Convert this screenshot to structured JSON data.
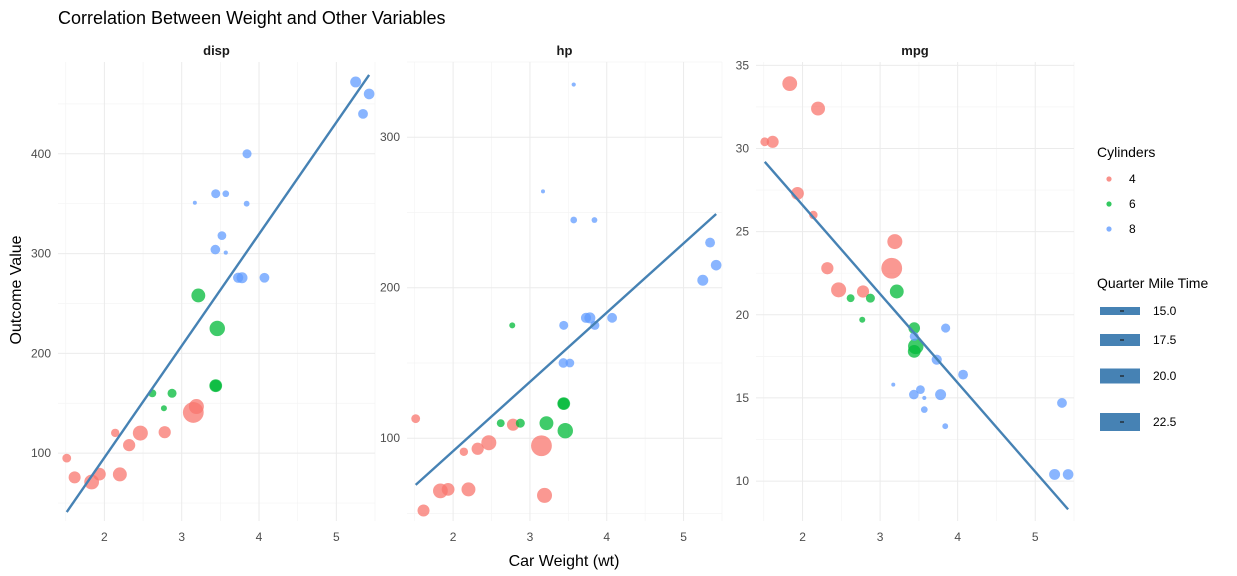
{
  "title": "Correlation Between Weight and Other Variables",
  "xlabel": "Car Weight (wt)",
  "ylabel": "Outcome Value",
  "colors": {
    "4": "#F8766D",
    "6": "#00BA38",
    "8": "#619CFF",
    "trend": "#4682B4"
  },
  "legend": {
    "color_title": "Cylinders",
    "color_items": [
      "4",
      "6",
      "8"
    ],
    "size_title": "Quarter Mile Time",
    "size_items": [
      "15.0",
      "17.5",
      "20.0",
      "22.5"
    ]
  },
  "chart_data": {
    "type": "scatter",
    "facets": [
      {
        "name": "disp",
        "xlim": [
          1.4,
          5.5
        ],
        "ylim": [
          32,
          492
        ],
        "xticks": [
          2,
          3,
          4,
          5
        ],
        "yticks": [
          100,
          200,
          300,
          400,
          500
        ],
        "trend": {
          "x": [
            1.513,
            5.424
          ],
          "y": [
            41,
            479
          ]
        },
        "points": [
          {
            "x": 1.513,
            "y": 95,
            "cyl": "4",
            "qsec": 16.9
          },
          {
            "x": 1.615,
            "y": 75.7,
            "cyl": "4",
            "qsec": 18.52
          },
          {
            "x": 1.835,
            "y": 71.1,
            "cyl": "4",
            "qsec": 19.9
          },
          {
            "x": 1.935,
            "y": 79,
            "cyl": "4",
            "qsec": 18.9
          },
          {
            "x": 2.14,
            "y": 120.3,
            "cyl": "4",
            "qsec": 16.7
          },
          {
            "x": 2.2,
            "y": 78.7,
            "cyl": "4",
            "qsec": 19.47
          },
          {
            "x": 2.32,
            "y": 108,
            "cyl": "4",
            "qsec": 18.61
          },
          {
            "x": 2.465,
            "y": 120.1,
            "cyl": "4",
            "qsec": 20.01
          },
          {
            "x": 2.62,
            "y": 160,
            "cyl": "6",
            "qsec": 16.46
          },
          {
            "x": 2.78,
            "y": 121,
            "cyl": "4",
            "qsec": 18.6
          },
          {
            "x": 2.77,
            "y": 145,
            "cyl": "6",
            "qsec": 15.5
          },
          {
            "x": 2.875,
            "y": 160,
            "cyl": "6",
            "qsec": 17.02
          },
          {
            "x": 3.15,
            "y": 140.8,
            "cyl": "4",
            "qsec": 22.9
          },
          {
            "x": 3.19,
            "y": 146.7,
            "cyl": "4",
            "qsec": 20.0
          },
          {
            "x": 3.215,
            "y": 258,
            "cyl": "6",
            "qsec": 19.44
          },
          {
            "x": 3.17,
            "y": 351,
            "cyl": "8",
            "qsec": 14.5
          },
          {
            "x": 3.435,
            "y": 304,
            "cyl": "8",
            "qsec": 17.3
          },
          {
            "x": 3.44,
            "y": 360,
            "cyl": "8",
            "qsec": 17.02
          },
          {
            "x": 3.44,
            "y": 167.6,
            "cyl": "6",
            "qsec": 18.3
          },
          {
            "x": 3.44,
            "y": 167.6,
            "cyl": "6",
            "qsec": 18.9
          },
          {
            "x": 3.46,
            "y": 225,
            "cyl": "6",
            "qsec": 20.22
          },
          {
            "x": 3.52,
            "y": 318,
            "cyl": "8",
            "qsec": 16.87
          },
          {
            "x": 3.57,
            "y": 360,
            "cyl": "8",
            "qsec": 15.84
          },
          {
            "x": 3.57,
            "y": 301,
            "cyl": "8",
            "qsec": 14.6
          },
          {
            "x": 3.73,
            "y": 275.8,
            "cyl": "8",
            "qsec": 17.6
          },
          {
            "x": 3.78,
            "y": 275.8,
            "cyl": "8",
            "qsec": 18.0
          },
          {
            "x": 3.845,
            "y": 400,
            "cyl": "8",
            "qsec": 17.05
          },
          {
            "x": 3.84,
            "y": 350,
            "cyl": "8",
            "qsec": 15.41
          },
          {
            "x": 4.07,
            "y": 275.8,
            "cyl": "8",
            "qsec": 17.4
          },
          {
            "x": 5.25,
            "y": 472,
            "cyl": "8",
            "qsec": 17.98
          },
          {
            "x": 5.345,
            "y": 440,
            "cyl": "8",
            "qsec": 17.42
          },
          {
            "x": 5.424,
            "y": 460,
            "cyl": "8",
            "qsec": 17.82
          }
        ]
      },
      {
        "name": "hp",
        "xlim": [
          1.4,
          5.5
        ],
        "ylim": [
          45,
          350
        ],
        "xticks": [
          2,
          3,
          4,
          5
        ],
        "yticks": [
          100,
          200,
          300
        ],
        "trend": {
          "x": [
            1.513,
            5.424
          ],
          "y": [
            69,
            249
          ]
        },
        "points": [
          {
            "x": 1.513,
            "y": 113,
            "cyl": "4",
            "qsec": 16.9
          },
          {
            "x": 1.615,
            "y": 52,
            "cyl": "4",
            "qsec": 18.52
          },
          {
            "x": 1.835,
            "y": 65,
            "cyl": "4",
            "qsec": 19.9
          },
          {
            "x": 1.935,
            "y": 66,
            "cyl": "4",
            "qsec": 18.9
          },
          {
            "x": 2.14,
            "y": 91,
            "cyl": "4",
            "qsec": 16.7
          },
          {
            "x": 2.2,
            "y": 66,
            "cyl": "4",
            "qsec": 19.47
          },
          {
            "x": 2.32,
            "y": 93,
            "cyl": "4",
            "qsec": 18.61
          },
          {
            "x": 2.465,
            "y": 97,
            "cyl": "4",
            "qsec": 20.01
          },
          {
            "x": 2.62,
            "y": 110,
            "cyl": "6",
            "qsec": 16.46
          },
          {
            "x": 2.78,
            "y": 109,
            "cyl": "4",
            "qsec": 18.6
          },
          {
            "x": 2.77,
            "y": 175,
            "cyl": "6",
            "qsec": 15.5
          },
          {
            "x": 2.875,
            "y": 110,
            "cyl": "6",
            "qsec": 17.02
          },
          {
            "x": 3.15,
            "y": 95,
            "cyl": "4",
            "qsec": 22.9
          },
          {
            "x": 3.19,
            "y": 62,
            "cyl": "4",
            "qsec": 20.0
          },
          {
            "x": 3.215,
            "y": 110,
            "cyl": "6",
            "qsec": 19.44
          },
          {
            "x": 3.17,
            "y": 264,
            "cyl": "8",
            "qsec": 14.5
          },
          {
            "x": 3.435,
            "y": 150,
            "cyl": "8",
            "qsec": 17.3
          },
          {
            "x": 3.44,
            "y": 175,
            "cyl": "8",
            "qsec": 17.02
          },
          {
            "x": 3.44,
            "y": 123,
            "cyl": "6",
            "qsec": 18.3
          },
          {
            "x": 3.44,
            "y": 123,
            "cyl": "6",
            "qsec": 18.9
          },
          {
            "x": 3.46,
            "y": 105,
            "cyl": "6",
            "qsec": 20.22
          },
          {
            "x": 3.52,
            "y": 150,
            "cyl": "8",
            "qsec": 16.87
          },
          {
            "x": 3.57,
            "y": 245,
            "cyl": "8",
            "qsec": 15.84
          },
          {
            "x": 3.57,
            "y": 335,
            "cyl": "8",
            "qsec": 14.6
          },
          {
            "x": 3.73,
            "y": 180,
            "cyl": "8",
            "qsec": 17.6
          },
          {
            "x": 3.78,
            "y": 180,
            "cyl": "8",
            "qsec": 18.0
          },
          {
            "x": 3.845,
            "y": 175,
            "cyl": "8",
            "qsec": 17.05
          },
          {
            "x": 3.84,
            "y": 245,
            "cyl": "8",
            "qsec": 15.41
          },
          {
            "x": 4.07,
            "y": 180,
            "cyl": "8",
            "qsec": 17.4
          },
          {
            "x": 5.25,
            "y": 205,
            "cyl": "8",
            "qsec": 17.98
          },
          {
            "x": 5.345,
            "y": 230,
            "cyl": "8",
            "qsec": 17.42
          },
          {
            "x": 5.424,
            "y": 215,
            "cyl": "8",
            "qsec": 17.82
          }
        ]
      },
      {
        "name": "mpg",
        "xlim": [
          1.4,
          5.5
        ],
        "ylim": [
          7.6,
          35.2
        ],
        "xticks": [
          2,
          3,
          4,
          5
        ],
        "yticks": [
          10,
          15,
          20,
          25,
          30,
          35
        ],
        "trend": {
          "x": [
            1.513,
            5.424
          ],
          "y": [
            29.2,
            8.3
          ]
        },
        "points": [
          {
            "x": 1.513,
            "y": 30.4,
            "cyl": "4",
            "qsec": 16.9
          },
          {
            "x": 1.615,
            "y": 30.4,
            "cyl": "4",
            "qsec": 18.52
          },
          {
            "x": 1.835,
            "y": 33.9,
            "cyl": "4",
            "qsec": 19.9
          },
          {
            "x": 1.935,
            "y": 27.3,
            "cyl": "4",
            "qsec": 18.9
          },
          {
            "x": 2.14,
            "y": 26.0,
            "cyl": "4",
            "qsec": 16.7
          },
          {
            "x": 2.2,
            "y": 32.4,
            "cyl": "4",
            "qsec": 19.47
          },
          {
            "x": 2.32,
            "y": 22.8,
            "cyl": "4",
            "qsec": 18.61
          },
          {
            "x": 2.465,
            "y": 21.5,
            "cyl": "4",
            "qsec": 20.01
          },
          {
            "x": 2.62,
            "y": 21.0,
            "cyl": "6",
            "qsec": 16.46
          },
          {
            "x": 2.78,
            "y": 21.4,
            "cyl": "4",
            "qsec": 18.6
          },
          {
            "x": 2.77,
            "y": 19.7,
            "cyl": "6",
            "qsec": 15.5
          },
          {
            "x": 2.875,
            "y": 21.0,
            "cyl": "6",
            "qsec": 17.02
          },
          {
            "x": 3.15,
            "y": 22.8,
            "cyl": "4",
            "qsec": 22.9
          },
          {
            "x": 3.19,
            "y": 24.4,
            "cyl": "4",
            "qsec": 20.0
          },
          {
            "x": 3.215,
            "y": 21.4,
            "cyl": "6",
            "qsec": 19.44
          },
          {
            "x": 3.17,
            "y": 15.8,
            "cyl": "8",
            "qsec": 14.5
          },
          {
            "x": 3.435,
            "y": 15.2,
            "cyl": "8",
            "qsec": 17.3
          },
          {
            "x": 3.44,
            "y": 18.7,
            "cyl": "8",
            "qsec": 17.02
          },
          {
            "x": 3.44,
            "y": 19.2,
            "cyl": "6",
            "qsec": 18.3
          },
          {
            "x": 3.44,
            "y": 17.8,
            "cyl": "6",
            "qsec": 18.9
          },
          {
            "x": 3.46,
            "y": 18.1,
            "cyl": "6",
            "qsec": 20.22
          },
          {
            "x": 3.52,
            "y": 15.5,
            "cyl": "8",
            "qsec": 16.87
          },
          {
            "x": 3.57,
            "y": 14.3,
            "cyl": "8",
            "qsec": 15.84
          },
          {
            "x": 3.57,
            "y": 15.0,
            "cyl": "8",
            "qsec": 14.6
          },
          {
            "x": 3.73,
            "y": 17.3,
            "cyl": "8",
            "qsec": 17.6
          },
          {
            "x": 3.78,
            "y": 15.2,
            "cyl": "8",
            "qsec": 18.0
          },
          {
            "x": 3.845,
            "y": 19.2,
            "cyl": "8",
            "qsec": 17.05
          },
          {
            "x": 3.84,
            "y": 13.3,
            "cyl": "8",
            "qsec": 15.41
          },
          {
            "x": 4.07,
            "y": 16.4,
            "cyl": "8",
            "qsec": 17.4
          },
          {
            "x": 5.25,
            "y": 10.4,
            "cyl": "8",
            "qsec": 17.98
          },
          {
            "x": 5.345,
            "y": 14.7,
            "cyl": "8",
            "qsec": 17.42
          },
          {
            "x": 5.424,
            "y": 10.4,
            "cyl": "8",
            "qsec": 17.82
          }
        ]
      }
    ]
  }
}
